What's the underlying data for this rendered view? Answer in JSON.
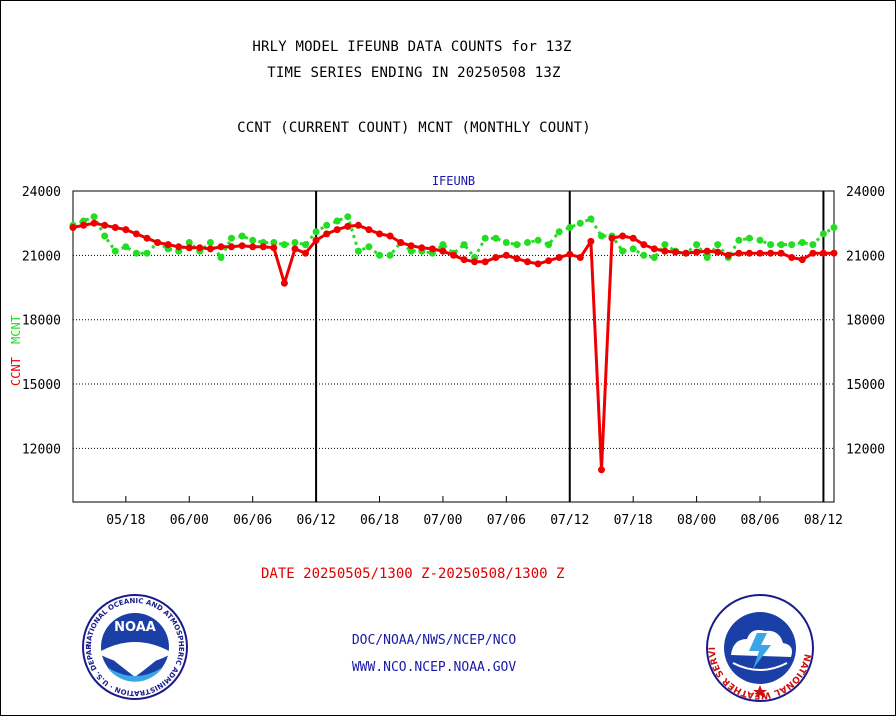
{
  "header": {
    "title_line1": "HRLY MODEL IFEUNB DATA COUNTS for 13Z",
    "title_line2": "TIME SERIES ENDING IN 20250508 13Z",
    "title_line3": "CCNT (CURRENT COUNT) MCNT (MONTHLY COUNT)"
  },
  "footer": {
    "date_range": "DATE 20250505/1300 Z-20250508/1300 Z",
    "org_path": "DOC/NOAA/NWS/NCEP/NCO",
    "website": "WWW.NCO.NCEP.NOAA.GOV"
  },
  "logos": {
    "left_name": "NOAA",
    "left_ring_text": "NATIONAL OCEANIC AND ATMOSPHERIC ADMINISTRATION · U.S. DEPARTMENT OF COMMERCE ·",
    "right_ring_text": "NATIONAL WEATHER SERVICE"
  },
  "colors": {
    "ccnt": "#ee0000",
    "mcnt": "#22dd22",
    "axis_label_blue": "#1a1aa8",
    "background": "#ffffff"
  },
  "chart_data": {
    "type": "line",
    "title": "IFEUNB",
    "ylabel_series1": "CCNT",
    "ylabel_series2": "MCNT",
    "ylim": [
      9500,
      24000
    ],
    "yticks": [
      12000,
      15000,
      18000,
      21000,
      24000
    ],
    "xlim": [
      0,
      72
    ],
    "xtick_labels": [
      "05/18",
      "06/00",
      "06/06",
      "06/12",
      "06/18",
      "07/00",
      "07/06",
      "07/12",
      "07/18",
      "08/00",
      "08/06",
      "08/12"
    ],
    "xtick_positions": [
      5,
      11,
      17,
      23,
      29,
      35,
      41,
      47,
      53,
      59,
      65,
      71
    ],
    "day_boundaries": [
      23,
      47,
      71
    ],
    "grid": "horizontal dotted",
    "series": [
      {
        "name": "CCNT",
        "color": "#ee0000",
        "x": [
          0,
          1,
          2,
          3,
          4,
          5,
          6,
          7,
          8,
          9,
          10,
          11,
          12,
          13,
          14,
          15,
          16,
          17,
          18,
          19,
          20,
          21,
          22,
          23,
          24,
          25,
          26,
          27,
          28,
          29,
          30,
          31,
          32,
          33,
          34,
          35,
          36,
          37,
          38,
          39,
          40,
          41,
          42,
          43,
          44,
          45,
          46,
          47,
          48,
          49,
          50,
          51,
          52,
          53,
          54,
          55,
          56,
          57,
          58,
          59,
          60,
          61,
          62,
          63,
          64,
          65,
          66,
          67,
          68,
          69,
          70,
          71,
          72
        ],
        "values": [
          22300,
          22400,
          22500,
          22400,
          22300,
          22200,
          22000,
          21800,
          21600,
          21500,
          21400,
          21350,
          21350,
          21300,
          21400,
          21400,
          21450,
          21400,
          21400,
          21350,
          19700,
          21300,
          21100,
          21700,
          22000,
          22200,
          22350,
          22400,
          22200,
          22000,
          21900,
          21600,
          21450,
          21350,
          21300,
          21200,
          21000,
          20800,
          20700,
          20700,
          20900,
          21000,
          20850,
          20700,
          20600,
          20750,
          20900,
          21050,
          20900,
          21650,
          11000,
          21800,
          21900,
          21800,
          21500,
          21300,
          21200,
          21150,
          21100,
          21150,
          21200,
          21150,
          21000,
          21100,
          21100,
          21100,
          21100,
          21100,
          20900,
          20800,
          21100,
          21100,
          21100
        ]
      },
      {
        "name": "MCNT",
        "color": "#22dd22",
        "x": [
          0,
          1,
          2,
          3,
          4,
          5,
          6,
          7,
          8,
          9,
          10,
          11,
          12,
          13,
          14,
          15,
          16,
          17,
          18,
          19,
          20,
          21,
          22,
          23,
          24,
          25,
          26,
          27,
          28,
          29,
          30,
          31,
          32,
          33,
          34,
          35,
          36,
          37,
          38,
          39,
          40,
          41,
          42,
          43,
          44,
          45,
          46,
          47,
          48,
          49,
          50,
          51,
          52,
          53,
          54,
          55,
          56,
          57,
          58,
          59,
          60,
          61,
          62,
          63,
          64,
          65,
          66,
          67,
          68,
          69,
          70,
          71,
          72
        ],
        "values": [
          22400,
          22600,
          22800,
          21900,
          21200,
          21400,
          21100,
          21100,
          21600,
          21300,
          21200,
          21600,
          21200,
          21600,
          20900,
          21800,
          21900,
          21700,
          21600,
          21600,
          21500,
          21600,
          21500,
          22100,
          22400,
          22600,
          22800,
          21200,
          21400,
          21000,
          21000,
          21600,
          21200,
          21200,
          21100,
          21500,
          21100,
          21500,
          20900,
          21800,
          21800,
          21600,
          21500,
          21600,
          21700,
          21500,
          22100,
          22300,
          22500,
          22700,
          21900,
          21900,
          21200,
          21300,
          21000,
          20900,
          21500,
          21200,
          21100,
          21500,
          20900,
          21500,
          20900,
          21700,
          21800,
          21700,
          21500,
          21500,
          21500,
          21600,
          21500,
          22000,
          22300
        ]
      }
    ]
  }
}
